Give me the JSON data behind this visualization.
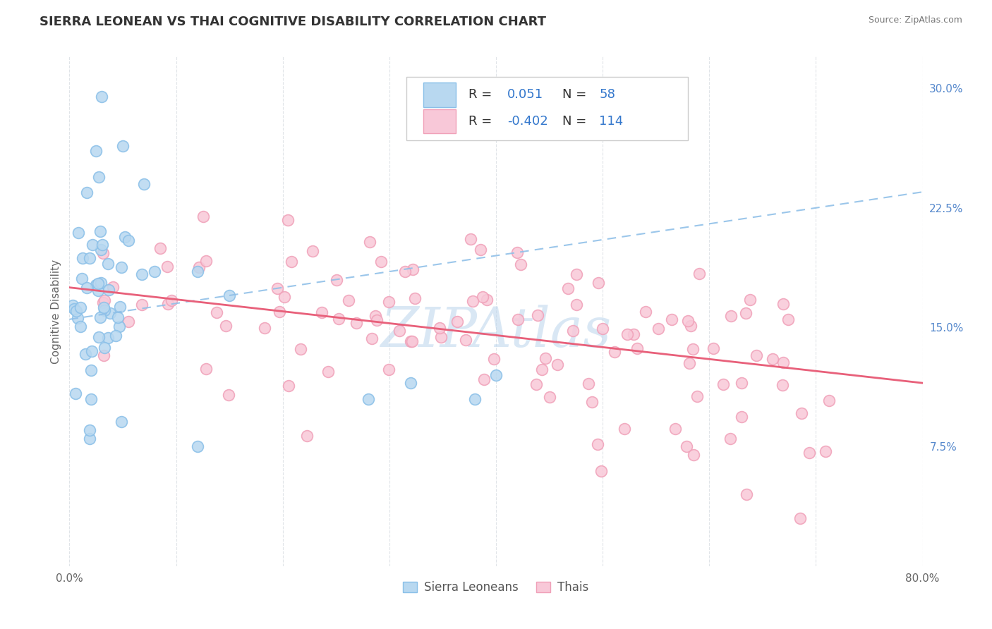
{
  "title": "SIERRA LEONEAN VS THAI COGNITIVE DISABILITY CORRELATION CHART",
  "source": "Source: ZipAtlas.com",
  "ylabel": "Cognitive Disability",
  "xlim": [
    0.0,
    0.8
  ],
  "ylim": [
    0.0,
    0.32
  ],
  "yticks_right": [
    0.075,
    0.15,
    0.225,
    0.3
  ],
  "ytick_labels_right": [
    "7.5%",
    "15.0%",
    "22.5%",
    "30.0%"
  ],
  "blue_color": "#89bfe8",
  "blue_fill": "#b8d8f0",
  "pink_color": "#f0a0b8",
  "pink_fill": "#f8c8d8",
  "trend_blue_color": "#90c0e8",
  "trend_pink_color": "#e8607a",
  "watermark": "ZIPAtlas",
  "watermark_color": "#c0d8ee",
  "background_color": "#ffffff",
  "grid_color": "#e0e4e8",
  "title_fontsize": 13,
  "axis_label_fontsize": 11,
  "tick_fontsize": 11,
  "legend_fontsize": 13,
  "right_tick_color": "#5588cc",
  "r_n_color": "#3377cc"
}
